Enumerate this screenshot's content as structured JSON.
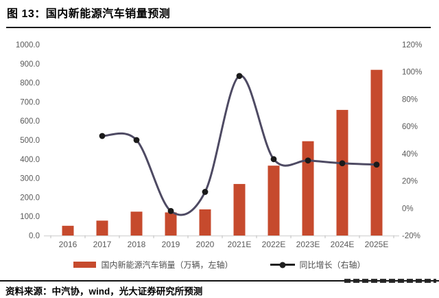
{
  "title": "图 13：国内新能源汽车销量预测",
  "source": "资料来源：中汽协，wind，光大证券研究所预测",
  "colors": {
    "bar": "#C64A2D",
    "line": "#4E4A63",
    "marker": "#1A1A1A",
    "legend_line": "#1F1F1F",
    "axis_line": "#D9D9D9",
    "tick_mark": "#BFBFBF",
    "tick_label": "#595959",
    "rule": "#111111"
  },
  "chart_data": {
    "type": "bar",
    "subtype": "bar+line combo, dual axis",
    "categories": [
      "2016",
      "2017",
      "2018",
      "2019",
      "2020",
      "2021E",
      "2022E",
      "2023E",
      "2024E",
      "2025E"
    ],
    "series": [
      {
        "name": "国内新能源汽车销量（万辆，左轴）",
        "type": "bar",
        "axis": "left",
        "values": [
          51,
          78,
          125,
          121,
          137,
          270,
          366,
          494,
          658,
          868
        ]
      },
      {
        "name": "同比增长（右轴）",
        "type": "line",
        "axis": "right",
        "values": [
          null,
          53,
          50,
          -2,
          12,
          97,
          36,
          35,
          33,
          32
        ]
      }
    ],
    "left_axis": {
      "min": 0,
      "max": 1000,
      "step": 100,
      "format": "decimal1"
    },
    "right_axis": {
      "min": -20,
      "max": 120,
      "step": 20,
      "format": "percent"
    },
    "grid": false,
    "legend_position": "bottom"
  }
}
